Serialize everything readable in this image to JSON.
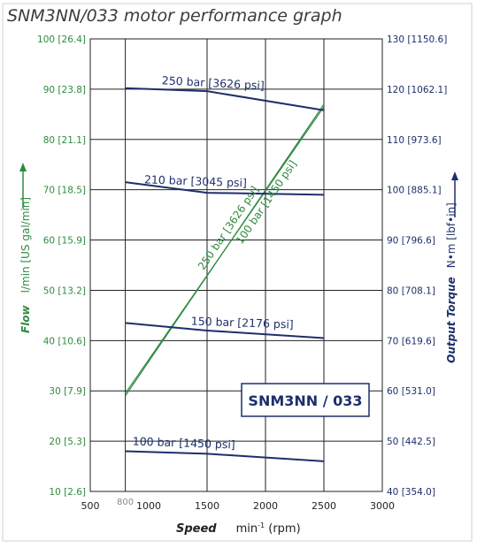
{
  "title": "SNM3NN/033 motor performance graph",
  "colors": {
    "title": "#3c3c3c",
    "flow": "#2e8b3e",
    "torque": "#1d2f6b",
    "grid": "#222222",
    "frame": "#d2d2d2",
    "muted": "#8a8a8a"
  },
  "chart_data": {
    "type": "line",
    "title": "SNM3NN/033 motor performance graph",
    "xlabel_bold": "Speed",
    "xlabel_unit_base": "min",
    "xlabel_unit_sup": "-1",
    "xlabel_unit_rest": " (rpm)",
    "xlim": [
      500,
      3000
    ],
    "x_ticks": [
      "500",
      "1000",
      "1500",
      "2000",
      "2500",
      "3000"
    ],
    "x_min_marker": "800",
    "left_axis": {
      "label_bold": "Flow",
      "label_unit": "l/min  [US gal/min]",
      "lim": [
        10,
        100
      ],
      "ticks": [
        {
          "v": 10,
          "label": "10 [2.6]"
        },
        {
          "v": 20,
          "label": "20 [5.3]"
        },
        {
          "v": 30,
          "label": "30 [7.9]"
        },
        {
          "v": 40,
          "label": "40 [10.6]"
        },
        {
          "v": 50,
          "label": "50 [13.2]"
        },
        {
          "v": 60,
          "label": "60 [15.9]"
        },
        {
          "v": 70,
          "label": "70 [18.5]"
        },
        {
          "v": 80,
          "label": "80 [21.1]"
        },
        {
          "v": 90,
          "label": "90 [23.8]"
        },
        {
          "v": 100,
          "label": "100 [26.4]"
        }
      ]
    },
    "right_axis": {
      "label_bold": "Output Torque",
      "label_unit": "N•m  [lbf•in]",
      "lim": [
        40,
        130
      ],
      "ticks": [
        {
          "v": 40,
          "label": "40 [354.0]"
        },
        {
          "v": 50,
          "label": "50 [442.5]"
        },
        {
          "v": 60,
          "label": "60 [531.0]"
        },
        {
          "v": 70,
          "label": "70 [619.6]"
        },
        {
          "v": 80,
          "label": "80 [708.1]"
        },
        {
          "v": 90,
          "label": "90 [796.6]"
        },
        {
          "v": 100,
          "label": "100 [885.1]"
        },
        {
          "v": 110,
          "label": "110 [973.6]"
        },
        {
          "v": 120,
          "label": "120 [1062.1]"
        },
        {
          "v": 130,
          "label": "130 [1150.6]"
        }
      ]
    },
    "vertical_gridlines": [
      800,
      1500,
      2000,
      2500
    ],
    "torque_series": [
      {
        "name": "250 bar [3626 psi]",
        "x": [
          800,
          1500,
          2500
        ],
        "y": [
          120.2,
          119.6,
          115.8
        ]
      },
      {
        "name": "210 bar [3045 psi]",
        "x": [
          800,
          1500,
          2500
        ],
        "y": [
          101.5,
          99.4,
          99.0
        ]
      },
      {
        "name": "150 bar [2176 psi]",
        "x": [
          800,
          1500,
          2500
        ],
        "y": [
          73.5,
          72.0,
          70.5
        ]
      },
      {
        "name": "100 bar [1450 psi]",
        "x": [
          800,
          1500,
          2500
        ],
        "y": [
          48.0,
          47.5,
          46.0
        ]
      }
    ],
    "flow_series": [
      {
        "name": "250 bar [3626 psi]",
        "x": [
          800,
          2500
        ],
        "y": [
          29.0,
          87.0
        ]
      },
      {
        "name": "100 bar [1450 psi]",
        "x": [
          800,
          2500
        ],
        "y": [
          29.5,
          86.5
        ]
      }
    ],
    "legend_box": "SNM3NN / 033"
  }
}
